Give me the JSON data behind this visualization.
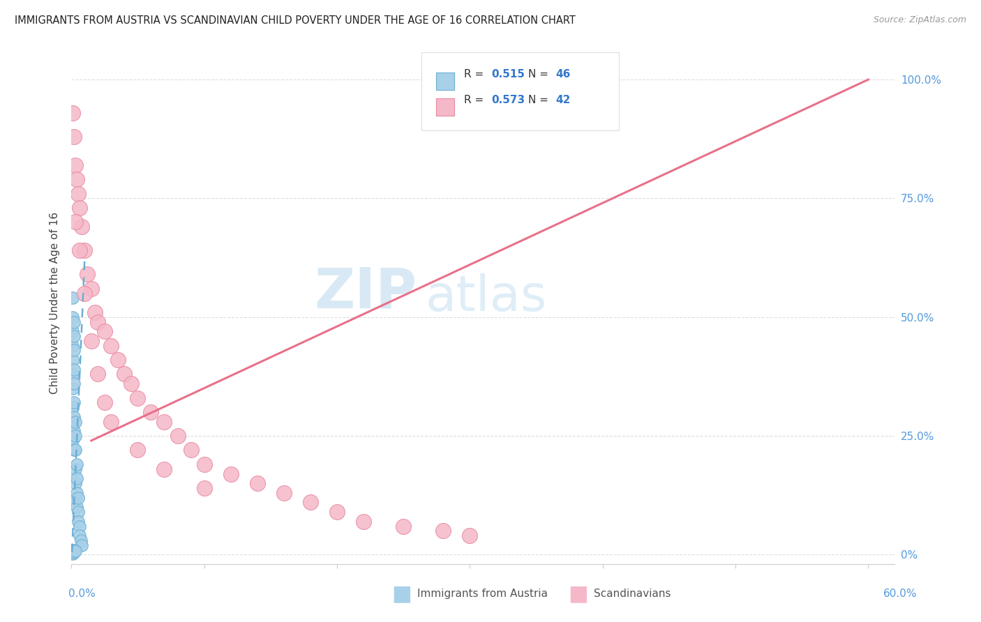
{
  "title": "IMMIGRANTS FROM AUSTRIA VS SCANDINAVIAN CHILD POVERTY UNDER THE AGE OF 16 CORRELATION CHART",
  "source": "Source: ZipAtlas.com",
  "ylabel": "Child Poverty Under the Age of 16",
  "y_tick_vals": [
    0.0,
    0.25,
    0.5,
    0.75,
    1.0
  ],
  "y_tick_labels": [
    "0%",
    "25.0%",
    "50.0%",
    "75.0%",
    "100.0%"
  ],
  "xlim": [
    0.0,
    0.62
  ],
  "ylim": [
    -0.02,
    1.08
  ],
  "watermark_zip": "ZIP",
  "watermark_atlas": "atlas",
  "legend_r1": "R = 0.515",
  "legend_n1": "N = 46",
  "legend_r2": "R = 0.573",
  "legend_n2": "N = 42",
  "blue_fill": "#a8d0e8",
  "blue_edge": "#6aafd4",
  "pink_fill": "#f5b8c8",
  "pink_edge": "#e88aa0",
  "trend_blue": "#6aafd4",
  "trend_pink": "#e8708a",
  "grid_color": "#dddddd",
  "bg_color": "#ffffff",
  "austria_x": [
    0.001,
    0.001,
    0.001,
    0.001,
    0.001,
    0.001,
    0.001,
    0.001,
    0.001,
    0.001,
    0.002,
    0.002,
    0.002,
    0.002,
    0.002,
    0.002,
    0.002,
    0.002,
    0.002,
    0.003,
    0.003,
    0.003,
    0.003,
    0.003,
    0.003,
    0.004,
    0.004,
    0.004,
    0.004,
    0.005,
    0.005,
    0.005,
    0.006,
    0.006,
    0.007,
    0.008,
    0.001,
    0.001,
    0.001,
    0.001,
    0.001,
    0.001,
    0.002,
    0.002,
    0.002,
    0.003
  ],
  "austria_y": [
    0.54,
    0.5,
    0.47,
    0.44,
    0.41,
    0.38,
    0.35,
    0.31,
    0.27,
    0.24,
    0.49,
    0.46,
    0.43,
    0.39,
    0.36,
    0.32,
    0.29,
    0.26,
    0.22,
    0.28,
    0.25,
    0.22,
    0.18,
    0.15,
    0.12,
    0.19,
    0.16,
    0.13,
    0.1,
    0.12,
    0.09,
    0.07,
    0.06,
    0.04,
    0.03,
    0.02,
    0.01,
    0.008,
    0.006,
    0.004,
    0.003,
    0.002,
    0.01,
    0.007,
    0.005,
    0.008
  ],
  "scand_x": [
    0.001,
    0.002,
    0.003,
    0.004,
    0.005,
    0.006,
    0.008,
    0.01,
    0.012,
    0.015,
    0.018,
    0.02,
    0.025,
    0.03,
    0.035,
    0.04,
    0.045,
    0.05,
    0.06,
    0.07,
    0.08,
    0.09,
    0.1,
    0.12,
    0.14,
    0.16,
    0.18,
    0.2,
    0.22,
    0.25,
    0.28,
    0.3,
    0.003,
    0.006,
    0.01,
    0.015,
    0.02,
    0.025,
    0.03,
    0.05,
    0.07,
    0.1
  ],
  "scand_y": [
    0.93,
    0.88,
    0.82,
    0.79,
    0.76,
    0.73,
    0.69,
    0.64,
    0.59,
    0.56,
    0.51,
    0.49,
    0.47,
    0.44,
    0.41,
    0.38,
    0.36,
    0.33,
    0.3,
    0.28,
    0.25,
    0.22,
    0.19,
    0.17,
    0.15,
    0.13,
    0.11,
    0.09,
    0.07,
    0.06,
    0.05,
    0.04,
    0.7,
    0.64,
    0.55,
    0.45,
    0.38,
    0.32,
    0.28,
    0.22,
    0.18,
    0.14
  ],
  "blue_trendline_x": [
    0.0005,
    0.01
  ],
  "blue_trendline_y": [
    0.005,
    0.62
  ],
  "pink_trendline_x": [
    0.015,
    0.6
  ],
  "pink_trendline_y": [
    0.24,
    1.0
  ]
}
